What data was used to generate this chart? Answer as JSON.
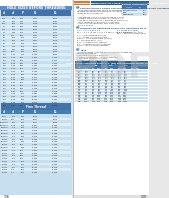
{
  "page_bg": "#e8e8e8",
  "left_bg": "#c8dff0",
  "right_bg": "#ffffff",
  "table_row0": "#c8dff0",
  "table_row1": "#dceef8",
  "header_blue": "#4472a8",
  "dark_blue": "#2c5f8a",
  "title_bar_color": "#5b8fc4",
  "orange": "#d47a3a",
  "text_dark": "#1a1a1a",
  "text_blue_hdr": "#1a3a5c",
  "white": "#ffffff",
  "grey_line": "#999999",
  "section_circle": "#3a6ea0",
  "pdf_watermark": "#c0c0c0",
  "left_title_bg": "#5b8fc4",
  "second_table_header": "#4080b0",
  "note_bg": "#e8f4fd",
  "small_table_bg": "#c8dff0",
  "small_table_header": "#4472a8"
}
